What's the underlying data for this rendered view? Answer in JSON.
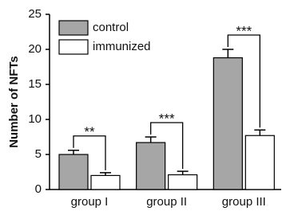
{
  "chart_data": {
    "type": "bar",
    "y_label": "Number of NFTs",
    "categories": [
      "group I",
      "group II",
      "group III"
    ],
    "series": [
      {
        "name": "control",
        "color": "#a6a6a6",
        "values": [
          5.0,
          6.7,
          18.8
        ],
        "errors": [
          0.6,
          0.8,
          1.2
        ]
      },
      {
        "name": "immunized",
        "color": "#ffffff",
        "values": [
          2.0,
          2.1,
          7.7
        ],
        "errors": [
          0.4,
          0.5,
          0.8
        ]
      }
    ],
    "annotations": [
      "**",
      "***",
      "***"
    ],
    "ylim": [
      0,
      25
    ],
    "yticks": [
      0,
      5,
      10,
      15,
      20,
      25
    ],
    "legend": "upper left"
  }
}
